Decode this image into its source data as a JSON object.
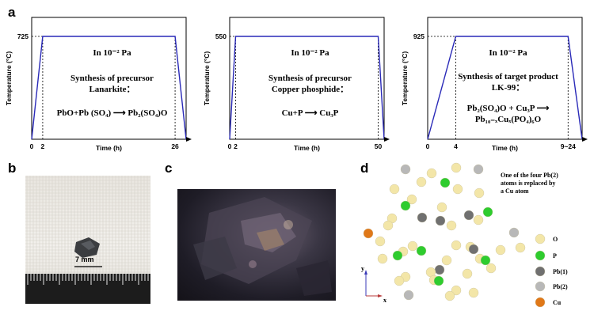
{
  "figure": {
    "labels": {
      "a": "a",
      "b": "b",
      "c": "c",
      "d": "d"
    }
  },
  "chart_data": [
    {
      "type": "line",
      "ylabel": "Temperature (°C)",
      "xlabel": "Time (h)",
      "x": [
        0,
        2,
        26,
        28
      ],
      "y": [
        0,
        725,
        725,
        0
      ],
      "xticks": [
        "0",
        "2",
        "26"
      ],
      "ytick": "725",
      "text_lines": [
        "In 10⁻² Pa",
        "Synthesis of precursor",
        "Lanarkite：",
        "PbO+Pb (SO₄) ⟶ Pb₂(SO₄)O"
      ]
    },
    {
      "type": "line",
      "ylabel": "Temperature (°C)",
      "xlabel": "Time (h)",
      "x": [
        0,
        2,
        50,
        52
      ],
      "y": [
        0,
        550,
        550,
        0
      ],
      "xticks": [
        "0",
        "2",
        "50"
      ],
      "ytick": "550",
      "text_lines": [
        "In 10⁻² Pa",
        "Synthesis of precursor",
        "Copper phosphide：",
        "Cu+P ⟶ Cu₃P"
      ]
    },
    {
      "type": "line",
      "ylabel": "Temperature (°C)",
      "xlabel": "Time (h)",
      "x": [
        0,
        4,
        20,
        22
      ],
      "y": [
        0,
        925,
        925,
        0
      ],
      "xticks": [
        "0",
        "4",
        "9~24"
      ],
      "ytick": "925",
      "text_lines": [
        "In 10⁻² Pa",
        "Synthesis of target product",
        "LK-99：",
        "Pb₂(SO₄)O + Cu₃P ⟶",
        "Pb₁₀₋ₓCuₓ(PO₄)₆O"
      ]
    }
  ],
  "panel_b": {
    "scale_label": "7 mm"
  },
  "panel_d": {
    "note_lines": [
      "One of the four Pb(2)",
      "atoms is replaced by",
      "a Cu atom"
    ],
    "legend": [
      {
        "label": "O",
        "color": "#f3e6a8"
      },
      {
        "label": "P",
        "color": "#2ecc2e"
      },
      {
        "label": "Pb(1)",
        "color": "#707070"
      },
      {
        "label": "Pb(2)",
        "color": "#b8b8b8"
      },
      {
        "label": "Cu",
        "color": "#e07818"
      }
    ],
    "axis_y": "y",
    "axis_x": "x"
  }
}
